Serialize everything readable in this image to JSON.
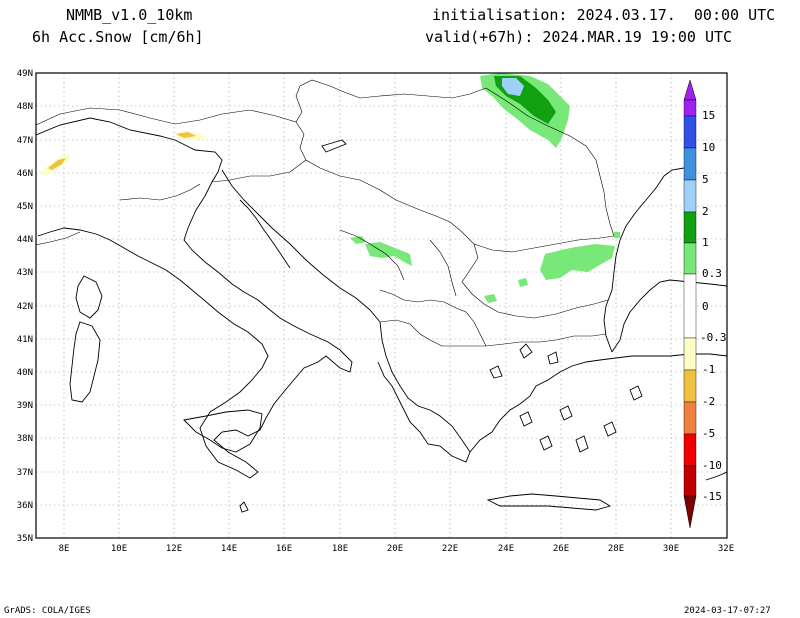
{
  "header": {
    "model": "NMMB_v1.0_10km",
    "variable": "6h Acc.Snow [cm/6h]",
    "init": "initialisation: 2024.03.17.  00:00 UTC",
    "valid": "valid(+67h): 2024.MAR.19 19:00 UTC"
  },
  "footer": {
    "credit": "GrADS: COLA/IGES",
    "timestamp": "2024-03-17-07:27"
  },
  "map": {
    "lon_labels": [
      "8E",
      "10E",
      "12E",
      "14E",
      "16E",
      "18E",
      "20E",
      "22E",
      "24E",
      "26E",
      "28E",
      "30E",
      "32E"
    ],
    "lat_labels": [
      "49N",
      "48N",
      "47N",
      "46N",
      "45N",
      "44N",
      "43N",
      "42N",
      "41N",
      "40N",
      "39N",
      "38N",
      "37N",
      "36N",
      "35N"
    ],
    "lon_range": [
      7,
      32
    ],
    "lat_range": [
      35,
      49
    ]
  },
  "colorbar": {
    "labels": [
      "15",
      "10",
      "5",
      "2",
      "1",
      "0.3",
      "0",
      "-0.3",
      "-1",
      "-2",
      "-5",
      "-10",
      "-15"
    ],
    "colors": {
      "violet": "#a020f0",
      "blue": "#3050e8",
      "mid_blue": "#4090e0",
      "light_blue": "#a0d0f8",
      "green": "#10a010",
      "light_green": "#78e878",
      "pale_yellow": "#fdfdc8",
      "yellow": "#f0c040",
      "orange": "#f08040",
      "red": "#f00000",
      "dark_red": "#c00000",
      "maroon": "#800000"
    }
  }
}
